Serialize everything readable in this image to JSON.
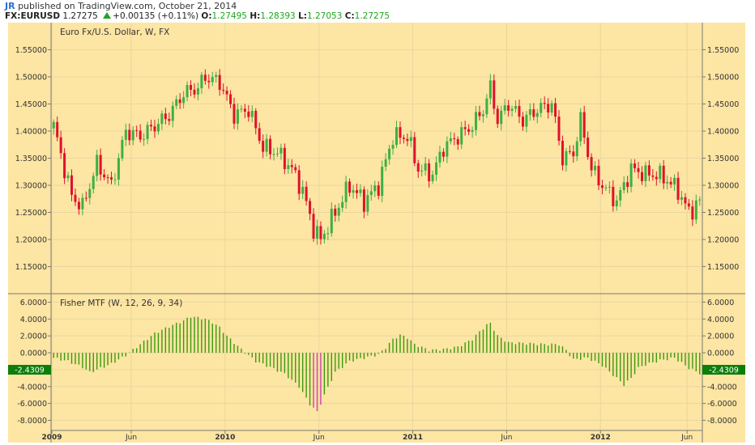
{
  "header": {
    "publisher": "JR",
    "published_text": "published on TradingView.com, October 21, 2014",
    "symbol": "FX:EURUSD",
    "last": "1.27275",
    "change": "+0.00135 (+0.11%)",
    "o_label": "O:",
    "o": "1.27495",
    "h_label": "H:",
    "h": "1.28393",
    "l_label": "L:",
    "l": "1.27053",
    "c_label": "C:",
    "c": "1.27275"
  },
  "chart_data": [
    {
      "type": "candlestick",
      "title": "Euro Fx/U.S. Dollar, W, FX",
      "ylim": [
        1.1,
        1.6
      ],
      "y_ticks": [
        "1.15000",
        "1.20000",
        "1.25000",
        "1.30000",
        "1.35000",
        "1.40000",
        "1.45000",
        "1.50000",
        "1.55000"
      ],
      "x_ticks": [
        "2009",
        "Jun",
        "2010",
        "Jun",
        "2011",
        "Jun",
        "2012",
        "Jun"
      ],
      "colors": {
        "up": "#3cb043",
        "down": "#e0112b",
        "background": "#fde5a3"
      },
      "close_path": [
        [
          0,
          1.41
        ],
        [
          3,
          1.33
        ],
        [
          5,
          1.28
        ],
        [
          8,
          1.26
        ],
        [
          12,
          1.34
        ],
        [
          16,
          1.3
        ],
        [
          20,
          1.4
        ],
        [
          24,
          1.39
        ],
        [
          28,
          1.41
        ],
        [
          32,
          1.43
        ],
        [
          36,
          1.47
        ],
        [
          40,
          1.48
        ],
        [
          42,
          1.5
        ],
        [
          46,
          1.49
        ],
        [
          50,
          1.43
        ],
        [
          54,
          1.44
        ],
        [
          58,
          1.37
        ],
        [
          62,
          1.36
        ],
        [
          66,
          1.33
        ],
        [
          69,
          1.29
        ],
        [
          72,
          1.22
        ],
        [
          74,
          1.2
        ],
        [
          78,
          1.25
        ],
        [
          82,
          1.3
        ],
        [
          86,
          1.27
        ],
        [
          90,
          1.3
        ],
        [
          94,
          1.39
        ],
        [
          98,
          1.39
        ],
        [
          101,
          1.33
        ],
        [
          105,
          1.32
        ],
        [
          108,
          1.37
        ],
        [
          112,
          1.39
        ],
        [
          116,
          1.41
        ],
        [
          119,
          1.44
        ],
        [
          121,
          1.48
        ],
        [
          123,
          1.42
        ],
        [
          126,
          1.45
        ],
        [
          130,
          1.42
        ],
        [
          134,
          1.44
        ],
        [
          138,
          1.45
        ],
        [
          141,
          1.35
        ],
        [
          144,
          1.36
        ],
        [
          146,
          1.42
        ],
        [
          149,
          1.33
        ],
        [
          152,
          1.3
        ],
        [
          156,
          1.27
        ],
        [
          160,
          1.33
        ],
        [
          164,
          1.32
        ],
        [
          167,
          1.32
        ],
        [
          170,
          1.31
        ],
        [
          173,
          1.29
        ],
        [
          176,
          1.25
        ],
        [
          179,
          1.27
        ]
      ]
    },
    {
      "type": "bar",
      "title": "Fisher MTF (W, 12, 26, 9, 34)",
      "ylim": [
        -9.2,
        7.0
      ],
      "y_ticks": [
        "-8.0000",
        "-6.0000",
        "-4.0000",
        "-2.0000",
        "0.0000",
        "2.0000",
        "4.0000",
        "6.0000"
      ],
      "last_value": "-2.4309",
      "colors": {
        "bar": "#3a9a0e",
        "extreme": "#cc3fb6",
        "label_bg": "#0c7e0c"
      },
      "value_path": [
        [
          0,
          -0.6
        ],
        [
          4,
          -1.0
        ],
        [
          8,
          -1.7
        ],
        [
          10,
          -2.3
        ],
        [
          12,
          -2.0
        ],
        [
          16,
          -1.3
        ],
        [
          20,
          -0.3
        ],
        [
          24,
          1.0
        ],
        [
          28,
          2.3
        ],
        [
          32,
          3.1
        ],
        [
          36,
          3.8
        ],
        [
          38,
          4.3
        ],
        [
          42,
          4.0
        ],
        [
          44,
          3.6
        ],
        [
          46,
          3.0
        ],
        [
          48,
          2.0
        ],
        [
          52,
          0.4
        ],
        [
          56,
          -1.0
        ],
        [
          60,
          -1.7
        ],
        [
          64,
          -2.5
        ],
        [
          68,
          -4.0
        ],
        [
          71,
          -6.1
        ],
        [
          73,
          -7.0
        ],
        [
          75,
          -5.0
        ],
        [
          78,
          -2.3
        ],
        [
          82,
          -1.0
        ],
        [
          86,
          -0.6
        ],
        [
          90,
          -0.2
        ],
        [
          92,
          0.6
        ],
        [
          94,
          1.6
        ],
        [
          96,
          2.1
        ],
        [
          98,
          1.8
        ],
        [
          100,
          1.0
        ],
        [
          104,
          0.3
        ],
        [
          108,
          0.4
        ],
        [
          112,
          0.7
        ],
        [
          116,
          1.6
        ],
        [
          118,
          2.5
        ],
        [
          120,
          3.3
        ],
        [
          121,
          3.5
        ],
        [
          123,
          2.0
        ],
        [
          126,
          1.2
        ],
        [
          132,
          1.1
        ],
        [
          136,
          1.0
        ],
        [
          140,
          1.0
        ],
        [
          142,
          0.3
        ],
        [
          144,
          -0.8
        ],
        [
          148,
          -0.6
        ],
        [
          152,
          -1.5
        ],
        [
          156,
          -3.0
        ],
        [
          158,
          -3.8
        ],
        [
          160,
          -3.0
        ],
        [
          162,
          -1.8
        ],
        [
          164,
          -1.4
        ],
        [
          168,
          -0.9
        ],
        [
          172,
          -0.6
        ],
        [
          176,
          -1.8
        ],
        [
          179,
          -2.43
        ]
      ]
    }
  ]
}
